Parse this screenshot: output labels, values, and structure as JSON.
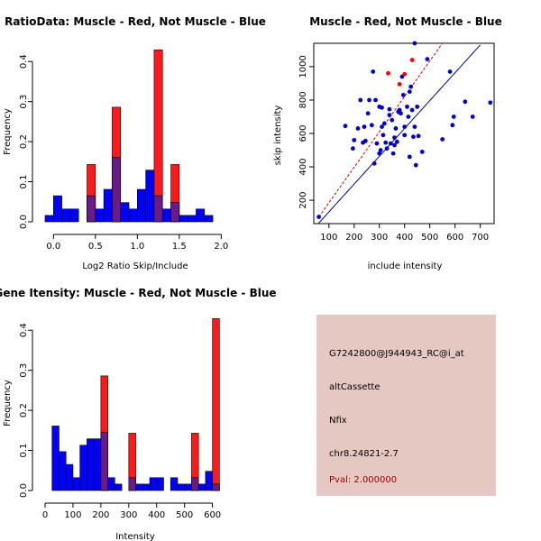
{
  "chart_data": [
    {
      "type": "bar",
      "title": "RatioData: Muscle - Red, Not Muscle - Blue",
      "xlabel": "Log2 Ratio Skip/Include",
      "ylabel": "Frequency",
      "xlim": [
        -0.1,
        2.05
      ],
      "ylim": [
        0,
        0.45
      ],
      "xticks": [
        "0.0",
        "0.5",
        "1.0",
        "1.5",
        "2.0"
      ],
      "yticks": [
        "0.0",
        "0.1",
        "0.2",
        "0.3",
        "0.4"
      ],
      "bin_width": 0.1,
      "series": [
        {
          "name": "Not Muscle",
          "color": "#0000ff",
          "bins": [
            [
              -0.1,
              0.016
            ],
            [
              0.0,
              0.065
            ],
            [
              0.1,
              0.032
            ],
            [
              0.2,
              0.032
            ],
            [
              0.4,
              0.065
            ],
            [
              0.5,
              0.032
            ],
            [
              0.6,
              0.081
            ],
            [
              0.7,
              0.161
            ],
            [
              0.8,
              0.048
            ],
            [
              0.9,
              0.032
            ],
            [
              1.0,
              0.081
            ],
            [
              1.1,
              0.129
            ],
            [
              1.2,
              0.065
            ],
            [
              1.3,
              0.032
            ],
            [
              1.4,
              0.048
            ],
            [
              1.5,
              0.016
            ],
            [
              1.6,
              0.016
            ],
            [
              1.7,
              0.032
            ],
            [
              1.8,
              0.016
            ]
          ]
        },
        {
          "name": "Muscle",
          "color": "#ff0000",
          "bins": [
            [
              0.4,
              0.143
            ],
            [
              0.7,
              0.286
            ],
            [
              1.2,
              0.429
            ],
            [
              1.4,
              0.143
            ]
          ]
        }
      ]
    },
    {
      "type": "scatter",
      "title": "Muscle - Red, Not Muscle - Blue",
      "xlabel": "include intensity",
      "ylabel": "skip intensity",
      "xlim": [
        40,
        755
      ],
      "ylim": [
        60,
        1140
      ],
      "xticks": [
        "100",
        "200",
        "300",
        "400",
        "500",
        "600",
        "700"
      ],
      "yticks": [
        "200",
        "400",
        "600",
        "800",
        "1000"
      ],
      "lines": [
        {
          "name": "blue-fit",
          "color": "#00008b",
          "points": [
            [
              55,
              55
            ],
            [
              700,
              1130
            ]
          ]
        },
        {
          "name": "red-fit",
          "color": "#cc0000",
          "points": [
            [
              60,
              100
            ],
            [
              550,
              1140
            ]
          ]
        }
      ],
      "series": [
        {
          "name": "Not Muscle",
          "color": "#0000cc",
          "points": [
            [
              60,
              100
            ],
            [
              165,
              645
            ],
            [
              195,
              510
            ],
            [
              200,
              560
            ],
            [
              215,
              630
            ],
            [
              225,
              800
            ],
            [
              235,
              545
            ],
            [
              240,
              640
            ],
            [
              245,
              555
            ],
            [
              255,
              720
            ],
            [
              260,
              800
            ],
            [
              270,
              650
            ],
            [
              275,
              970
            ],
            [
              280,
              420
            ],
            [
              285,
              800
            ],
            [
              290,
              540
            ],
            [
              300,
              480
            ],
            [
              305,
              500
            ],
            [
              310,
              755
            ],
            [
              315,
              590
            ],
            [
              320,
              660
            ],
            [
              325,
              545
            ],
            [
              330,
              510
            ],
            [
              340,
              745
            ],
            [
              345,
              540
            ],
            [
              350,
              680
            ],
            [
              355,
              480
            ],
            [
              360,
              575
            ],
            [
              365,
              630
            ],
            [
              370,
              550
            ],
            [
              375,
              730
            ],
            [
              380,
              740
            ],
            [
              385,
              720
            ],
            [
              390,
              940
            ],
            [
              395,
              830
            ],
            [
              400,
              640
            ],
            [
              410,
              760
            ],
            [
              415,
              700
            ],
            [
              420,
              850
            ],
            [
              425,
              880
            ],
            [
              430,
              740
            ],
            [
              435,
              580
            ],
            [
              440,
              640
            ],
            [
              445,
              410
            ],
            [
              450,
              760
            ],
            [
              455,
              585
            ],
            [
              440,
              1140
            ],
            [
              490,
              1045
            ],
            [
              470,
              490
            ],
            [
              420,
              460
            ],
            [
              550,
              565
            ],
            [
              580,
              970
            ],
            [
              590,
              650
            ],
            [
              595,
              700
            ],
            [
              640,
              790
            ],
            [
              670,
              700
            ],
            [
              740,
              785
            ],
            [
              300,
              760
            ],
            [
              340,
              710
            ],
            [
              400,
              590
            ],
            [
              360,
              530
            ],
            [
              310,
              640
            ]
          ]
        },
        {
          "name": "Muscle",
          "color": "#ff0000",
          "points": [
            [
              335,
              960
            ],
            [
              380,
              895
            ],
            [
              400,
              955
            ],
            [
              430,
              1040
            ]
          ]
        }
      ]
    },
    {
      "type": "bar",
      "title": "Gene Itensity: Muscle - Red, Not Muscle - Blue",
      "xlabel": "Intensity",
      "ylabel": "Frequency",
      "xlim": [
        0,
        640
      ],
      "ylim": [
        0,
        0.45
      ],
      "xticks": [
        "0",
        "100",
        "200",
        "300",
        "400",
        "500",
        "600"
      ],
      "yticks": [
        "0.0",
        "0.1",
        "0.2",
        "0.3",
        "0.4"
      ],
      "bin_width": 25,
      "series": [
        {
          "name": "Not Muscle",
          "color": "#0000ff",
          "bins": [
            [
              25,
              0.161
            ],
            [
              50,
              0.097
            ],
            [
              75,
              0.065
            ],
            [
              100,
              0.032
            ],
            [
              125,
              0.113
            ],
            [
              150,
              0.129
            ],
            [
              175,
              0.129
            ],
            [
              200,
              0.145
            ],
            [
              225,
              0.032
            ],
            [
              250,
              0.016
            ],
            [
              300,
              0.032
            ],
            [
              325,
              0.016
            ],
            [
              350,
              0.016
            ],
            [
              375,
              0.032
            ],
            [
              400,
              0.032
            ],
            [
              450,
              0.032
            ],
            [
              475,
              0.016
            ],
            [
              500,
              0.016
            ],
            [
              525,
              0.032
            ],
            [
              550,
              0.016
            ],
            [
              575,
              0.048
            ],
            [
              600,
              0.016
            ]
          ]
        },
        {
          "name": "Muscle",
          "color": "#ff0000",
          "bins": [
            [
              200,
              0.286
            ],
            [
              300,
              0.143
            ],
            [
              525,
              0.143
            ],
            [
              600,
              0.429
            ]
          ]
        }
      ]
    }
  ],
  "info": {
    "id": "G7242800@J944943_RC@i_at",
    "event": "altCassette",
    "gene": "Nfix",
    "location": "chr8.24821-2.7",
    "pval": "Pval: 2.000000"
  }
}
